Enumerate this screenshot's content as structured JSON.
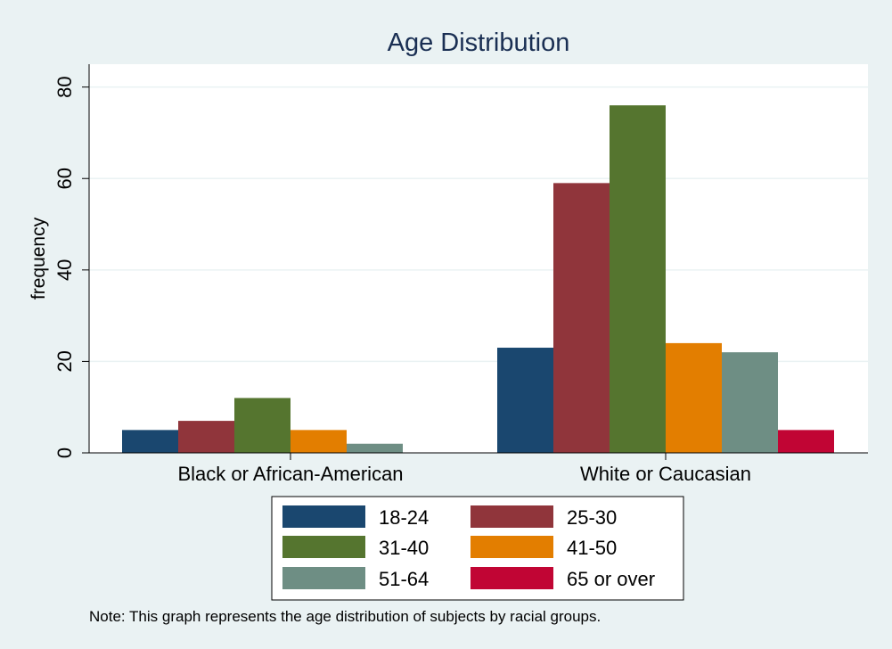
{
  "chart_data": {
    "type": "bar",
    "title": "Age Distribution",
    "ylabel": "frequency",
    "xlabel": "",
    "categories": [
      "Black or African-American",
      "White or Caucasian"
    ],
    "series": [
      {
        "name": "18-24",
        "color": "#1a476f",
        "values": [
          5,
          23
        ]
      },
      {
        "name": "25-30",
        "color": "#90353b",
        "values": [
          7,
          59
        ]
      },
      {
        "name": "31-40",
        "color": "#55752f",
        "values": [
          12,
          76
        ]
      },
      {
        "name": "41-50",
        "color": "#e37e00",
        "values": [
          5,
          24
        ]
      },
      {
        "name": "51-64",
        "color": "#6e8e84",
        "values": [
          2,
          22
        ]
      },
      {
        "name": "65 or over",
        "color": "#c10534",
        "values": [
          0,
          5
        ]
      }
    ],
    "ylim": [
      0,
      85
    ],
    "yticks": [
      0,
      20,
      40,
      60,
      80
    ],
    "grid": true,
    "legend_position": "bottom",
    "note": "Note: This graph represents the age distribution of subjects by racial groups."
  },
  "colors": {
    "background": "#eaf2f3",
    "plot_background": "#ffffff",
    "title": "#1a2f53",
    "gridline": "#eaf2f3"
  }
}
